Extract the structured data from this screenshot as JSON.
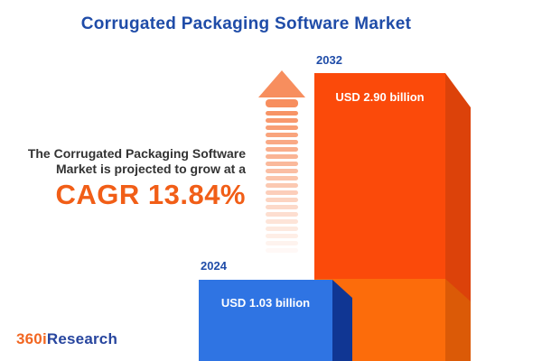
{
  "title": "Corrugated Packaging Software Market",
  "description": {
    "line1": "The Corrugated Packaging Software",
    "line2": "Market is projected to grow at a",
    "cagr": "CAGR 13.84%"
  },
  "bars": [
    {
      "year": "2024",
      "value_label": "USD 1.03 billion"
    },
    {
      "year": "2032",
      "value_label": "USD 2.90 billion"
    }
  ],
  "logo": {
    "part1": "360i",
    "part2": "Research"
  },
  "chart_data": {
    "type": "bar",
    "title": "Corrugated Packaging Software Market",
    "categories": [
      "2024",
      "2032"
    ],
    "values": [
      1.03,
      2.9
    ],
    "value_labels": [
      "USD 1.03 billion",
      "USD 2.90 billion"
    ],
    "unit": "USD billion",
    "cagr_percent": 13.84,
    "annotation": "The Corrugated Packaging Software Market is projected to grow at a CAGR 13.84%",
    "legend_position": "none",
    "axes_visible": false,
    "grid": false
  },
  "colors": {
    "title_blue": "#1f4ca8",
    "text_dark": "#333333",
    "cagr_orange": "#f15e17",
    "arrow_orange": "#f78e5e",
    "bar2024_front": "#2f74e3",
    "bar2024_side": "#103693",
    "bar2032_front_top": "#fb4a0a",
    "bar2032_front_bottom": "#fc6c0b",
    "bar2032_side_top": "#dc420a",
    "bar2032_side_bottom": "#db5a07",
    "logo_orange": "#f26722",
    "logo_blue": "#27459e"
  }
}
